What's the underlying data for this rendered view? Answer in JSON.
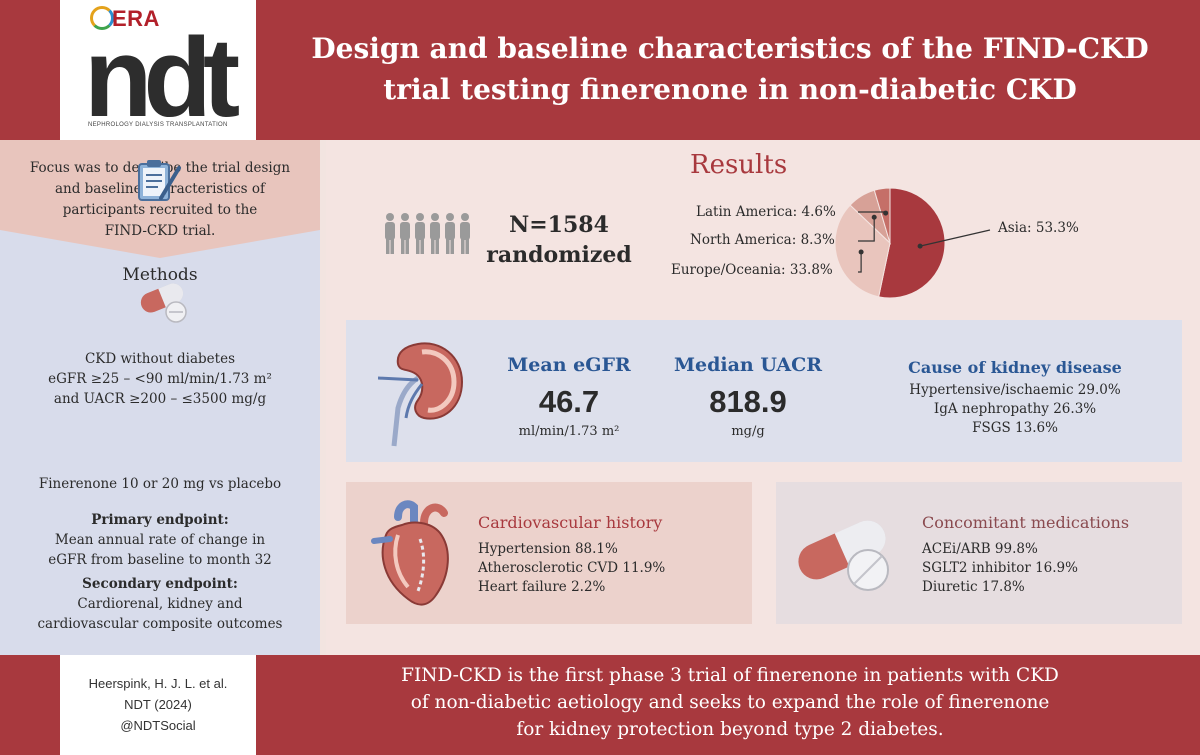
{
  "header": {
    "logo_era": "ERA",
    "logo_ndt": "ndt",
    "logo_subtitle": "NEPHROLOGY DIALYSIS TRANSPLANTATION",
    "title_line1": "Design and baseline characteristics of the FIND-CKD",
    "title_line2": "trial testing finerenone in non-diabetic CKD"
  },
  "focus": {
    "lines": [
      "Focus was to describe the trial design",
      "and baseline characteristics of",
      "participants recruited to the",
      "FIND-CKD trial."
    ]
  },
  "methods": {
    "title": "Methods",
    "criteria": [
      "CKD without diabetes",
      "eGFR ≥25 – <90 ml/min/1.73 m²",
      "and UACR ≥200 – ≤3500 mg/g"
    ],
    "treatment": "Finerenone 10 or 20 mg vs placebo",
    "primary_title": "Primary endpoint:",
    "primary_lines": [
      "Mean annual rate of change in",
      "eGFR from baseline to month 32"
    ],
    "secondary_title": "Secondary endpoint:",
    "secondary_lines": [
      "Cardiorenal, kidney and",
      "cardiovascular composite outcomes"
    ]
  },
  "results": {
    "title": "Results",
    "n_line1": "N=1584",
    "n_line2": "randomized"
  },
  "chart_data": {
    "type": "pie",
    "categories": [
      "Asia",
      "Europe/Oceania",
      "North America",
      "Latin America"
    ],
    "values": [
      53.3,
      33.8,
      8.3,
      4.6
    ],
    "labels": [
      "Asia: 53.3%",
      "Europe/Oceania: 33.8%",
      "North America: 8.3%",
      "Latin America: 4.6%"
    ],
    "colors": [
      "#a8393e",
      "#e9c5bd",
      "#d7a197",
      "#c56f68"
    ]
  },
  "egfr": {
    "title": "Mean eGFR",
    "value": "46.7",
    "unit": "ml/min/1.73 m²"
  },
  "uacr": {
    "title": "Median UACR",
    "value": "818.9",
    "unit": "mg/g"
  },
  "cause": {
    "title": "Cause of kidney disease",
    "items": [
      "Hypertensive/ischaemic 29.0%",
      "IgA nephropathy 26.3%",
      "FSGS 13.6%"
    ]
  },
  "cardio": {
    "title": "Cardiovascular history",
    "items": [
      "Hypertension 88.1%",
      "Atherosclerotic CVD 11.9%",
      "Heart failure 2.2%"
    ]
  },
  "meds": {
    "title": "Concomitant medications",
    "items": [
      "ACEi/ARB 99.8%",
      "SGLT2 inhibitor 16.9%",
      "Diuretic 17.8%"
    ]
  },
  "citation": {
    "line1": "Heerspink, H. J. L. et al.",
    "line2": "NDT (2024)",
    "line3": "@NDTSocial"
  },
  "footer": {
    "line1": "FIND-CKD is the first phase 3 trial of finerenone in patients with CKD",
    "line2": "of non-diabetic aetiology and seeks to expand the role of finerenone",
    "line3": "for kidney protection beyond type 2 diabetes."
  },
  "colors": {
    "brand_red": "#a8393e",
    "accent_blue": "#2a5794",
    "panel_lavender": "#d8dceb",
    "panel_pink": "#f4e4e1"
  },
  "icons": [
    "people-icon",
    "clipboard-icon",
    "pill-icon",
    "kidney-icon",
    "heart-icon",
    "capsule-icon"
  ]
}
